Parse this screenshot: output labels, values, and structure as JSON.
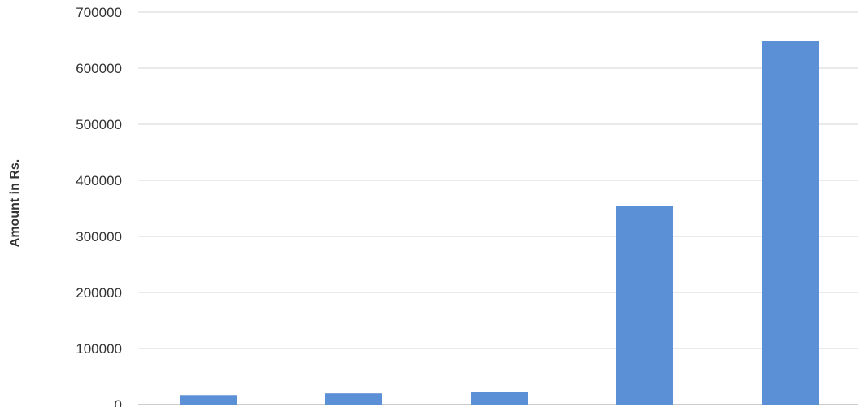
{
  "chart_data": {
    "type": "bar",
    "categories": [
      "",
      "",
      "",
      "",
      ""
    ],
    "values": [
      17000,
      20000,
      23000,
      355000,
      648000
    ],
    "title": "",
    "xlabel": "",
    "ylabel": "Amount in Rs.",
    "ylim": [
      0,
      700000
    ],
    "yticks": [
      "0",
      "100000",
      "200000",
      "300000",
      "400000",
      "500000",
      "600000",
      "700000"
    ],
    "grid": true,
    "legend": "none",
    "bar_color": "#5b8fd6"
  }
}
